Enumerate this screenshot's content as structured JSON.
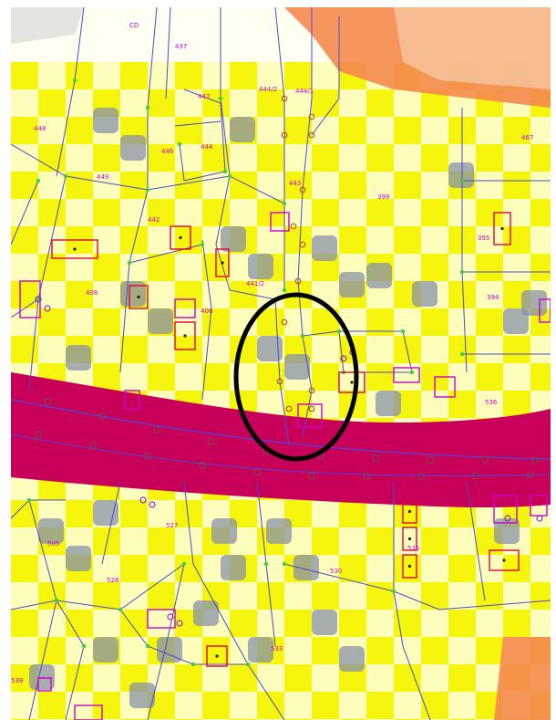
{
  "map": {
    "colors": {
      "background": "#fffef0",
      "zone_yellow": "#f4f400",
      "zone_orange": "#f5894e",
      "zone_peach": "#f7c39a",
      "zone_grey": "#8892a8",
      "road": "#c8005a",
      "parcel_line": "#4a4ad0",
      "vertex_green": "#44cc44",
      "vertex_brown": "#b05a2a",
      "building_red": "#e00040",
      "building_magenta": "#cc00cc",
      "highlight_circle": "#000000"
    },
    "highlight": "ellipse around parcel boundary at road",
    "plot_labels": [
      {
        "id": "p1",
        "text": "CD"
      },
      {
        "id": "p2",
        "text": "437"
      },
      {
        "id": "p3",
        "text": "444/2"
      },
      {
        "id": "p4",
        "text": "444/1"
      },
      {
        "id": "p5",
        "text": "448"
      },
      {
        "id": "p6",
        "text": "447"
      },
      {
        "id": "p7",
        "text": "446"
      },
      {
        "id": "p8",
        "text": "444"
      },
      {
        "id": "p9",
        "text": "443"
      },
      {
        "id": "p10",
        "text": "442"
      },
      {
        "id": "p11",
        "text": "449"
      },
      {
        "id": "p12",
        "text": "399"
      },
      {
        "id": "p13",
        "text": "467"
      },
      {
        "id": "p14",
        "text": "408"
      },
      {
        "id": "p15",
        "text": "406"
      },
      {
        "id": "p16",
        "text": "441/2"
      },
      {
        "id": "p17",
        "text": "395"
      },
      {
        "id": "p18",
        "text": "394"
      },
      {
        "id": "p19",
        "text": "505"
      },
      {
        "id": "p20",
        "text": "527"
      },
      {
        "id": "p21",
        "text": "528"
      },
      {
        "id": "p22",
        "text": "530"
      },
      {
        "id": "p23",
        "text": "533"
      },
      {
        "id": "p24",
        "text": "535"
      },
      {
        "id": "p25",
        "text": "536"
      },
      {
        "id": "p26",
        "text": "538"
      }
    ]
  }
}
